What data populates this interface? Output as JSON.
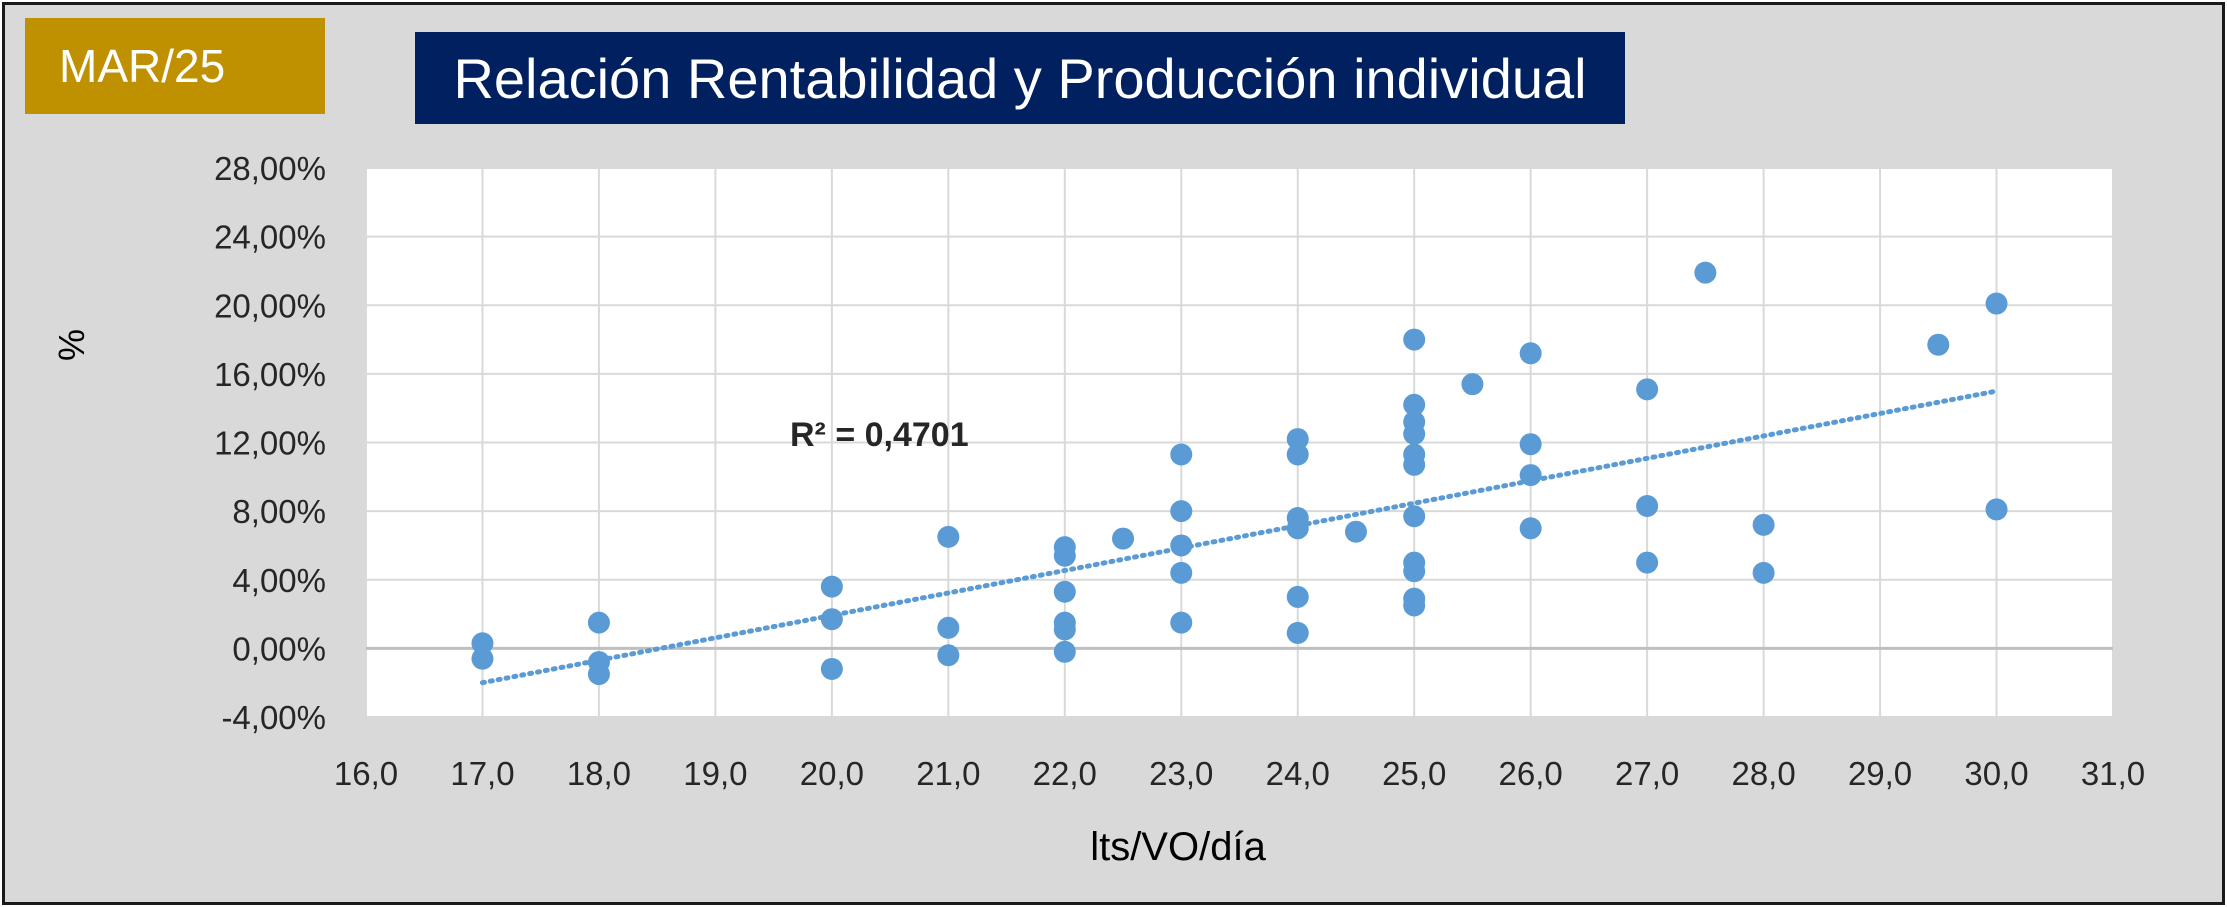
{
  "badge": {
    "label": "MAR/25"
  },
  "title": "Relación Rentabilidad y Producción individual",
  "colors": {
    "badge_bg": "#bf9000",
    "title_bg": "#002060",
    "point": "#5b9bd5",
    "trendline": "#5b9bd5",
    "plot_bg": "#ffffff",
    "chart_bg": "#d9d9d9"
  },
  "chart_data": {
    "type": "scatter",
    "title": "Relación Rentabilidad y Producción individual",
    "xlabel": "lts/VO/día",
    "ylabel": "%",
    "xlim": [
      16,
      31
    ],
    "ylim": [
      -4,
      28
    ],
    "grid": true,
    "x_ticks": [
      "16,0",
      "17,0",
      "18,0",
      "19,0",
      "20,0",
      "21,0",
      "22,0",
      "23,0",
      "24,0",
      "25,0",
      "26,0",
      "27,0",
      "28,0",
      "29,0",
      "30,0",
      "31,0"
    ],
    "y_ticks": [
      "-4,00%",
      "0,00%",
      "4,00%",
      "8,00%",
      "12,00%",
      "16,00%",
      "20,00%",
      "24,00%",
      "28,00%"
    ],
    "series": [
      {
        "points": [
          [
            17,
            0.3
          ],
          [
            17,
            -0.6
          ],
          [
            18,
            1.5
          ],
          [
            18,
            -0.8
          ],
          [
            18,
            -1.5
          ],
          [
            20,
            3.6
          ],
          [
            20,
            1.7
          ],
          [
            20,
            -1.2
          ],
          [
            21,
            6.5
          ],
          [
            21,
            1.2
          ],
          [
            21,
            -0.4
          ],
          [
            22,
            5.9
          ],
          [
            22,
            5.4
          ],
          [
            22,
            3.3
          ],
          [
            22,
            1.5
          ],
          [
            22,
            1.1
          ],
          [
            22,
            -0.2
          ],
          [
            22.5,
            6.4
          ],
          [
            23,
            11.3
          ],
          [
            23,
            8.0
          ],
          [
            23,
            6.0
          ],
          [
            23,
            4.4
          ],
          [
            23,
            1.5
          ],
          [
            24,
            12.2
          ],
          [
            24,
            11.3
          ],
          [
            24,
            7.6
          ],
          [
            24,
            7.0
          ],
          [
            24,
            3.0
          ],
          [
            24,
            0.9
          ],
          [
            24.5,
            6.8
          ],
          [
            25,
            18.0
          ],
          [
            25,
            14.2
          ],
          [
            25,
            13.2
          ],
          [
            25,
            12.5
          ],
          [
            25,
            11.3
          ],
          [
            25,
            10.7
          ],
          [
            25,
            7.7
          ],
          [
            25,
            5.0
          ],
          [
            25,
            4.5
          ],
          [
            25,
            2.9
          ],
          [
            25,
            2.5
          ],
          [
            25.5,
            15.4
          ],
          [
            26,
            17.2
          ],
          [
            26,
            11.9
          ],
          [
            26,
            10.1
          ],
          [
            26,
            7.0
          ],
          [
            27,
            15.1
          ],
          [
            27,
            8.3
          ],
          [
            27,
            5.0
          ],
          [
            27.5,
            21.9
          ],
          [
            28,
            7.2
          ],
          [
            28,
            4.4
          ],
          [
            29.5,
            17.7
          ],
          [
            30,
            20.1
          ],
          [
            30,
            8.1
          ]
        ]
      }
    ],
    "trendline": {
      "type": "linear",
      "x_range": [
        17,
        30
      ],
      "y_at_start": -2.0,
      "y_at_end": 15.0,
      "style": "dotted"
    },
    "annotation": "R² = 0,4701"
  }
}
